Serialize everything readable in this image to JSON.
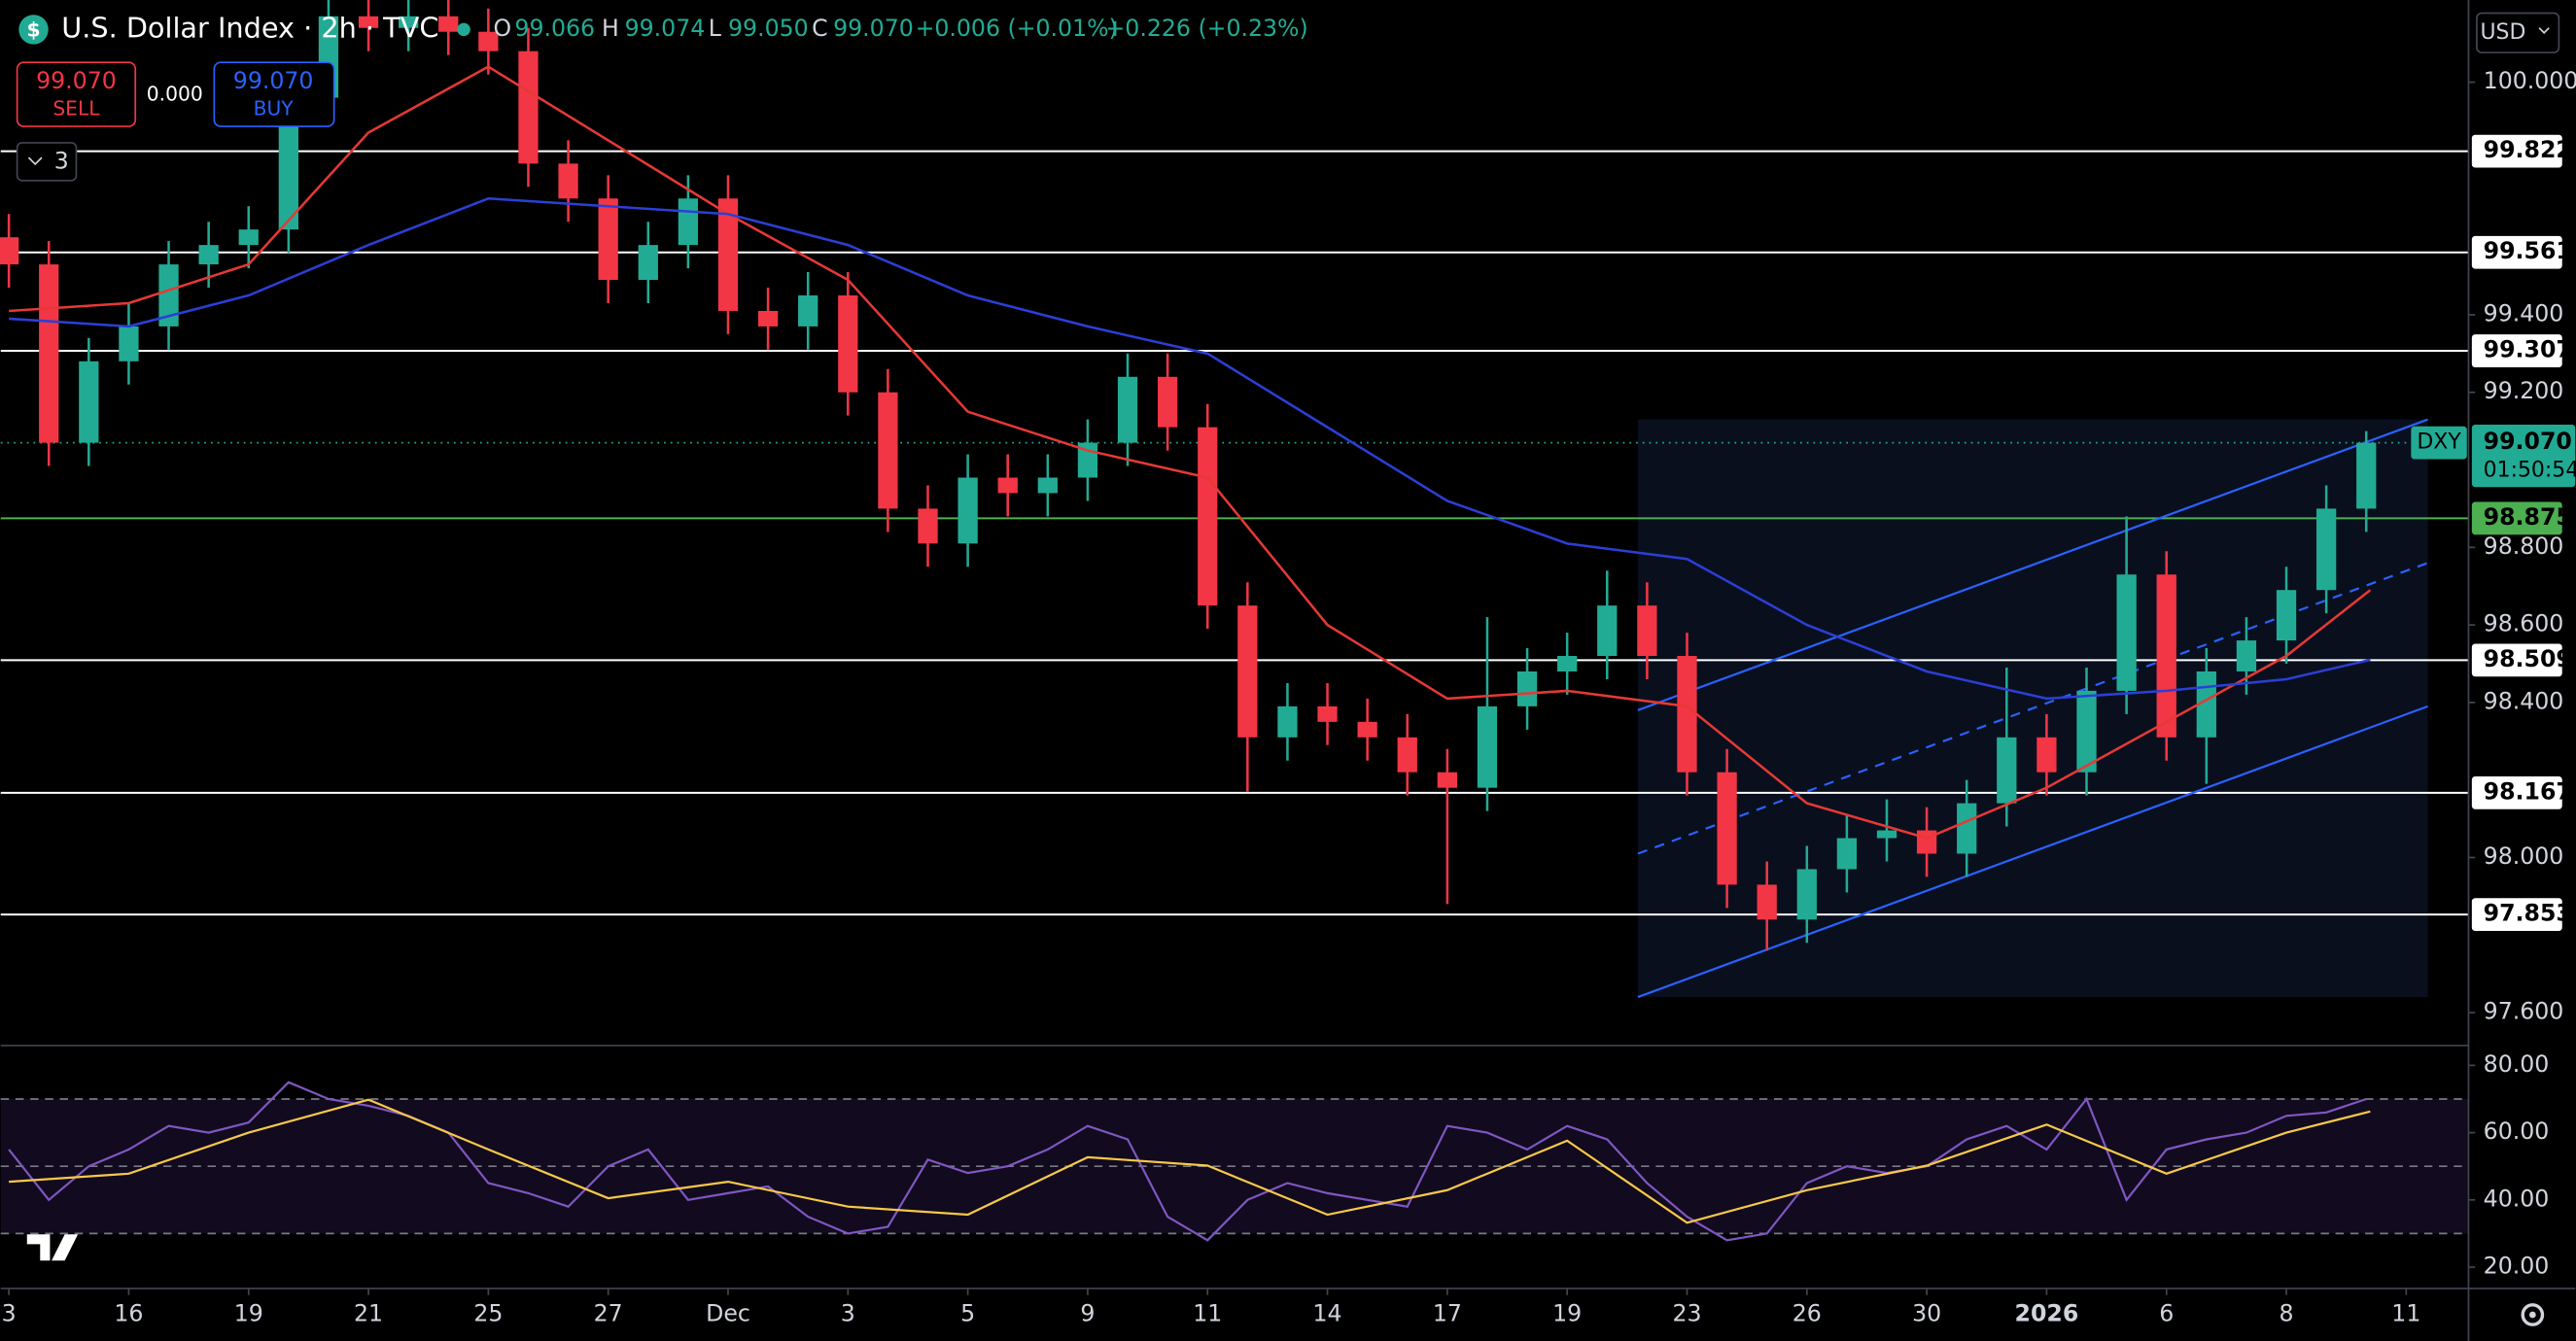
{
  "header": {
    "title": "U.S. Dollar Index · 2h · TVC",
    "ohlc": [
      {
        "key": "O",
        "value": "99.066"
      },
      {
        "key": "H",
        "value": "99.074"
      },
      {
        "key": "L",
        "value": "99.050"
      },
      {
        "key": "C",
        "value": "99.070"
      }
    ],
    "change": "+0.006 (+0.01%)",
    "change_total": "+0.226 (+0.23%)"
  },
  "trade": {
    "sell_price": "99.070",
    "sell": "SELL",
    "spread": "0.000",
    "buy_price": "99.070",
    "buy": "BUY"
  },
  "indicators_count": "3",
  "currency": "USD",
  "chart_data": {
    "type": "candlestick",
    "ylim": [
      97.515,
      100.212
    ],
    "yticks": [
      {
        "value": 100,
        "label": "100.000"
      },
      {
        "value": 99.4,
        "label": "99.400"
      },
      {
        "value": 99.2,
        "label": "99.200"
      },
      {
        "value": 98.8,
        "label": "98.800"
      },
      {
        "value": 98.6,
        "label": "98.600"
      },
      {
        "value": 98.4,
        "label": "98.400"
      },
      {
        "value": 98,
        "label": "98.000"
      },
      {
        "value": 97.6,
        "label": "97.600"
      }
    ],
    "xlim": [
      -0.068,
      20.52
    ],
    "xticks": [
      {
        "value": 0,
        "label": "3"
      },
      {
        "value": 1,
        "label": "16"
      },
      {
        "value": 2,
        "label": "19"
      },
      {
        "value": 3,
        "label": "21"
      },
      {
        "value": 4,
        "label": "25"
      },
      {
        "value": 5,
        "label": "27"
      },
      {
        "value": 6,
        "label": "Dec"
      },
      {
        "value": 7,
        "label": "3"
      },
      {
        "value": 8,
        "label": "5"
      },
      {
        "value": 9,
        "label": "9"
      },
      {
        "value": 10,
        "label": "11"
      },
      {
        "value": 11,
        "label": "14"
      },
      {
        "value": 12,
        "label": "17"
      },
      {
        "value": 13,
        "label": "19"
      },
      {
        "value": 14,
        "label": "23"
      },
      {
        "value": 15,
        "label": "26"
      },
      {
        "value": 16,
        "label": "30"
      },
      {
        "value": 17,
        "label": "2026"
      },
      {
        "value": 18,
        "label": "6"
      },
      {
        "value": 19,
        "label": "8"
      },
      {
        "value": 20,
        "label": "11"
      }
    ],
    "colors": {
      "up": "#22ab94",
      "down": "#f23645"
    },
    "candles": [
      [
        99.6,
        99.66,
        99.47,
        99.53
      ],
      [
        99.53,
        99.59,
        99.01,
        99.07
      ],
      [
        99.07,
        99.34,
        99.01,
        99.28
      ],
      [
        99.28,
        99.43,
        99.22,
        99.37
      ],
      [
        99.37,
        99.59,
        99.31,
        99.53
      ],
      [
        99.53,
        99.64,
        99.47,
        99.58
      ],
      [
        99.58,
        99.68,
        99.52,
        99.62
      ],
      [
        99.62,
        100.02,
        99.56,
        99.96
      ],
      [
        99.96,
        100.23,
        99.9,
        100.17
      ],
      [
        100.17,
        100.23,
        100.08,
        100.14
      ],
      [
        100.14,
        100.23,
        100.08,
        100.17
      ],
      [
        100.17,
        100.23,
        100.07,
        100.13
      ],
      [
        100.13,
        100.19,
        100.02,
        100.08
      ],
      [
        100.08,
        100.14,
        99.73,
        99.79
      ],
      [
        99.79,
        99.85,
        99.64,
        99.7
      ],
      [
        99.7,
        99.76,
        99.43,
        99.49
      ],
      [
        99.49,
        99.64,
        99.43,
        99.58
      ],
      [
        99.58,
        99.76,
        99.52,
        99.7
      ],
      [
        99.7,
        99.76,
        99.35,
        99.41
      ],
      [
        99.41,
        99.47,
        99.31,
        99.37
      ],
      [
        99.37,
        99.51,
        99.31,
        99.45
      ],
      [
        99.45,
        99.51,
        99.14,
        99.2
      ],
      [
        99.2,
        99.26,
        98.84,
        98.9
      ],
      [
        98.9,
        98.96,
        98.75,
        98.81
      ],
      [
        98.81,
        99.04,
        98.75,
        98.98
      ],
      [
        98.98,
        99.04,
        98.88,
        98.94
      ],
      [
        98.94,
        99.04,
        98.88,
        98.98
      ],
      [
        98.98,
        99.13,
        98.92,
        99.07
      ],
      [
        99.07,
        99.3,
        99.01,
        99.24
      ],
      [
        99.24,
        99.3,
        99.05,
        99.11
      ],
      [
        99.11,
        99.17,
        98.59,
        98.65
      ],
      [
        98.65,
        98.71,
        98.17,
        98.31
      ],
      [
        98.31,
        98.45,
        98.25,
        98.39
      ],
      [
        98.39,
        98.45,
        98.29,
        98.35
      ],
      [
        98.35,
        98.41,
        98.25,
        98.31
      ],
      [
        98.31,
        98.37,
        98.16,
        98.22
      ],
      [
        98.22,
        98.28,
        97.88,
        98.18
      ],
      [
        98.18,
        98.62,
        98.12,
        98.39
      ],
      [
        98.39,
        98.54,
        98.33,
        98.48
      ],
      [
        98.48,
        98.58,
        98.42,
        98.52
      ],
      [
        98.52,
        98.74,
        98.46,
        98.65
      ],
      [
        98.65,
        98.71,
        98.46,
        98.52
      ],
      [
        98.52,
        98.58,
        98.16,
        98.22
      ],
      [
        98.22,
        98.28,
        97.87,
        97.93
      ],
      [
        97.93,
        97.99,
        97.76,
        97.84
      ],
      [
        97.84,
        98.03,
        97.78,
        97.97
      ],
      [
        97.97,
        98.11,
        97.91,
        98.05
      ],
      [
        98.05,
        98.15,
        97.99,
        98.07
      ],
      [
        98.07,
        98.13,
        97.95,
        98.01
      ],
      [
        98.01,
        98.2,
        97.95,
        98.14
      ],
      [
        98.14,
        98.49,
        98.08,
        98.31
      ],
      [
        98.31,
        98.37,
        98.16,
        98.22
      ],
      [
        98.22,
        98.49,
        98.16,
        98.43
      ],
      [
        98.43,
        98.88,
        98.37,
        98.73
      ],
      [
        98.73,
        98.79,
        98.25,
        98.31
      ],
      [
        98.31,
        98.54,
        98.19,
        98.48
      ],
      [
        98.48,
        98.62,
        98.42,
        98.56
      ],
      [
        98.56,
        98.75,
        98.5,
        98.69
      ],
      [
        98.69,
        98.96,
        98.63,
        98.9
      ],
      [
        98.9,
        99.1,
        98.84,
        99.07
      ]
    ],
    "ma_x": [
      0,
      1,
      2,
      3,
      4,
      5,
      6,
      7,
      8,
      9,
      10,
      11,
      12,
      13,
      14,
      15,
      16,
      17,
      18,
      19,
      19.7
    ],
    "moving_averages": [
      {
        "color": "#e53935",
        "values": [
          99.41,
          99.43,
          99.53,
          99.87,
          100.04,
          99.85,
          99.66,
          99.49,
          99.15,
          99.05,
          98.98,
          98.6,
          98.41,
          98.43,
          98.39,
          98.14,
          98.05,
          98.18,
          98.35,
          98.52,
          98.69
        ]
      },
      {
        "color": "#2b3fd6",
        "values": [
          99.39,
          99.37,
          99.45,
          99.58,
          99.7,
          99.68,
          99.66,
          99.58,
          99.45,
          99.37,
          99.3,
          99.11,
          98.92,
          98.81,
          98.77,
          98.6,
          98.48,
          98.41,
          98.43,
          98.46,
          98.51
        ]
      }
    ],
    "levels": [
      {
        "value": 99.822,
        "label": "99.822",
        "color": "#ffffff"
      },
      {
        "value": 99.561,
        "label": "99.561",
        "color": "#ffffff"
      },
      {
        "value": 99.307,
        "label": "99.307",
        "color": "#ffffff"
      },
      {
        "value": 98.875,
        "label": "98.875",
        "color": "#4caf50"
      },
      {
        "value": 98.509,
        "label": "98.509",
        "color": "#ffffff"
      },
      {
        "value": 98.167,
        "label": "98.167",
        "color": "#ffffff"
      },
      {
        "value": 97.853,
        "label": "97.853",
        "color": "#ffffff"
      }
    ],
    "last_price": {
      "symbol": "DXY",
      "value": 99.07,
      "label": "99.070",
      "countdown": "01:50:54",
      "color": "#22ab94"
    },
    "channel": {
      "x": [
        13.59,
        20.18
      ],
      "upper": [
        98.38,
        99.13
      ],
      "middle": [
        98.01,
        98.76
      ],
      "lower": [
        97.64,
        98.39
      ],
      "color": "#2962ff"
    },
    "rsi": {
      "ylim": [
        13.66,
        85.9
      ],
      "yticks": [
        {
          "value": 80,
          "label": "80.00"
        },
        {
          "value": 60,
          "label": "60.00"
        },
        {
          "value": 40,
          "label": "40.00"
        },
        {
          "value": 20,
          "label": "20.00"
        }
      ],
      "levels": [
        70,
        50,
        30
      ],
      "color": "#7e57c2",
      "ma_color": "#f7c948",
      "values": [
        55,
        40,
        50,
        55,
        62,
        60,
        63,
        75,
        70,
        68,
        65,
        60,
        45,
        42,
        38,
        50,
        55,
        40,
        42,
        44,
        35,
        30,
        32,
        52,
        48,
        50,
        55,
        62,
        58,
        35,
        28,
        40,
        45,
        42,
        40,
        38,
        62,
        60,
        55,
        62,
        58,
        45,
        35,
        28,
        30,
        45,
        50,
        48,
        50,
        58,
        62,
        55,
        70,
        40,
        55,
        58,
        60,
        65,
        66,
        70
      ],
      "ma": [
        45.4,
        47.8,
        60,
        69.8,
        55,
        40.5,
        45.4,
        38,
        35.6,
        52.7,
        50.2,
        35.6,
        42.9,
        57.6,
        33.2,
        42.9,
        50.2,
        62.4,
        47.8,
        60,
        66.3
      ]
    }
  }
}
